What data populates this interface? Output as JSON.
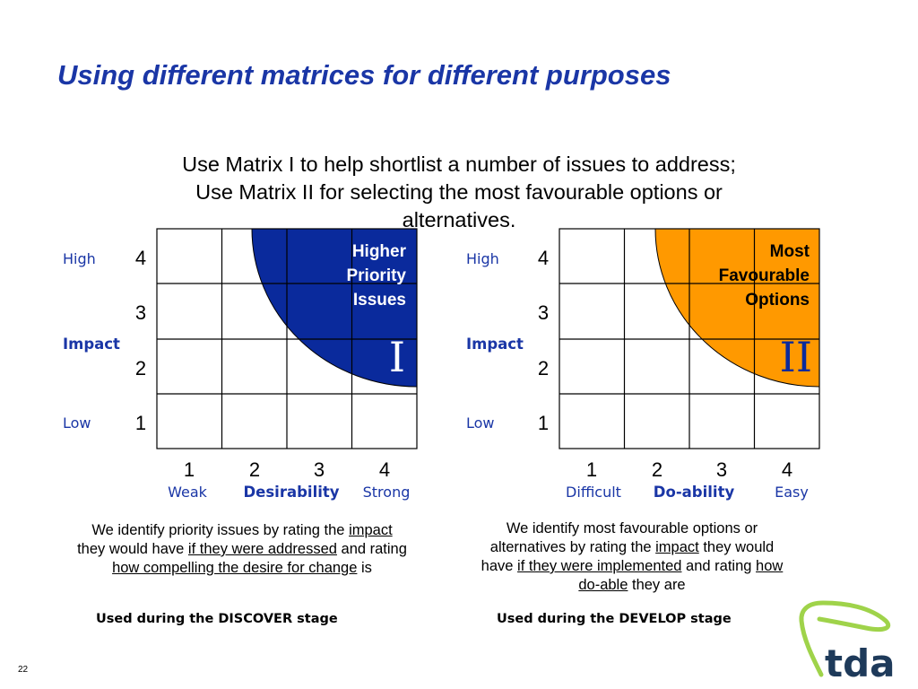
{
  "title": "Using different matrices for different purposes",
  "subtitle": {
    "line1": "Use Matrix I to help shortlist a number of issues to address;",
    "line2": "Use Matrix II for selecting the most favourable options or",
    "line3": "alternatives."
  },
  "colors": {
    "title": "#1a36a6",
    "matrix1_quadrant": "#0a2a9c",
    "matrix2_quadrant": "#ff9900",
    "axis_word": "#1a36a6",
    "logo_green": "#9fd34a",
    "logo_text": "#1e3a5a"
  },
  "matrices": [
    {
      "y_ticks": [
        "1",
        "2",
        "3",
        "4"
      ],
      "y_high": "High",
      "y_low": "Low",
      "y_label": "Impact",
      "x_ticks": [
        "1",
        "2",
        "3",
        "4"
      ],
      "x_low": "Weak",
      "x_label": "Desirability",
      "x_high": "Strong",
      "quadrant_lines": [
        "Higher",
        "Priority",
        "Issues"
      ],
      "numeral": "I"
    },
    {
      "y_ticks": [
        "1",
        "2",
        "3",
        "4"
      ],
      "y_high": "High",
      "y_low": "Low",
      "y_label": "Impact",
      "x_ticks": [
        "1",
        "2",
        "3",
        "4"
      ],
      "x_low": "Difficult",
      "x_label": "Do-ability",
      "x_high": "Easy",
      "quadrant_lines": [
        "Most",
        "Favourable",
        "Options"
      ],
      "numeral": "II"
    }
  ],
  "desc1": {
    "t1": "We identify priority issues by rating the ",
    "u1": "impact",
    "t2": " they would have ",
    "u2": "if they were addressed",
    "t3": " and rating ",
    "u3": "how compelling the desire for change",
    "t4": " is"
  },
  "desc2": {
    "t1": "We identify most favourable options or alternatives by rating the ",
    "u1": "impact",
    "t2": " they would have ",
    "u2": "if they were implemented",
    "t3": " and rating ",
    "u3": "how do-able",
    "t4": " they are"
  },
  "stage1": "Used during the DISCOVER stage",
  "stage2": "Used during the DEVELOP stage",
  "page_number": "22",
  "logo_text": "tda"
}
